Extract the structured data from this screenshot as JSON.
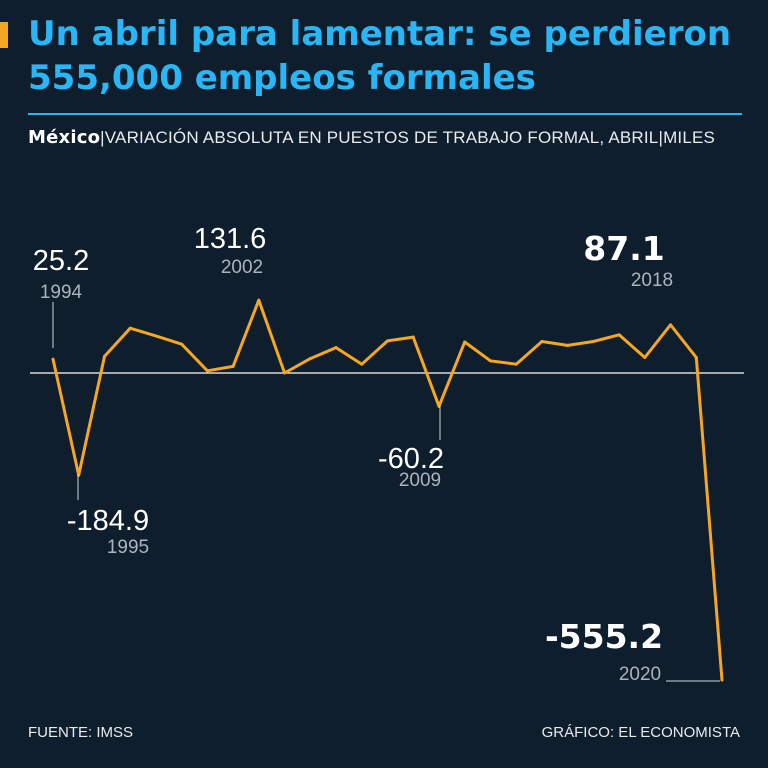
{
  "header": {
    "title": "Un abril para lamentar: se perdieron 555,000 empleos formales",
    "subtitle_country": "México",
    "subtitle_separator": "|",
    "subtitle_text": "VARIACIÓN ABSOLUTA EN PUESTOS DE TRABAJO FORMAL, ABRIL|MILES"
  },
  "footer": {
    "source": "FUENTE: IMSS",
    "credit": "GRÁFICO: EL ECONOMISTA"
  },
  "colors": {
    "background": "#0f1e2c",
    "title": "#29b6f6",
    "line": "#f5a623",
    "text": "#ffffff"
  },
  "chart_data": {
    "type": "line",
    "x": [
      1994,
      1995,
      1996,
      1997,
      1998,
      1999,
      2000,
      2001,
      2002,
      2003,
      2004,
      2005,
      2006,
      2007,
      2008,
      2009,
      2010,
      2011,
      2012,
      2013,
      2014,
      2015,
      2016,
      2017,
      2018,
      2019,
      2020
    ],
    "series": [
      {
        "values": [
          25.2,
          -184.9,
          30,
          81,
          67,
          52,
          4,
          12,
          131.6,
          0,
          26,
          46,
          16,
          58,
          65,
          -60.2,
          56,
          22,
          16,
          57,
          50,
          57,
          69,
          28,
          87.1,
          28,
          -555.2
        ]
      }
    ],
    "annotations": [
      {
        "year": 1994,
        "value": "25.2",
        "label": "1994"
      },
      {
        "year": 1995,
        "value": "-184.9",
        "label": "1995"
      },
      {
        "year": 2002,
        "value": "131.6",
        "label": "2002"
      },
      {
        "year": 2009,
        "value": "-60.2",
        "label": "2009"
      },
      {
        "year": 2018,
        "value": "87.1",
        "label": "2018"
      },
      {
        "year": 2020,
        "value": "-555.2",
        "label": "2020"
      }
    ]
  }
}
